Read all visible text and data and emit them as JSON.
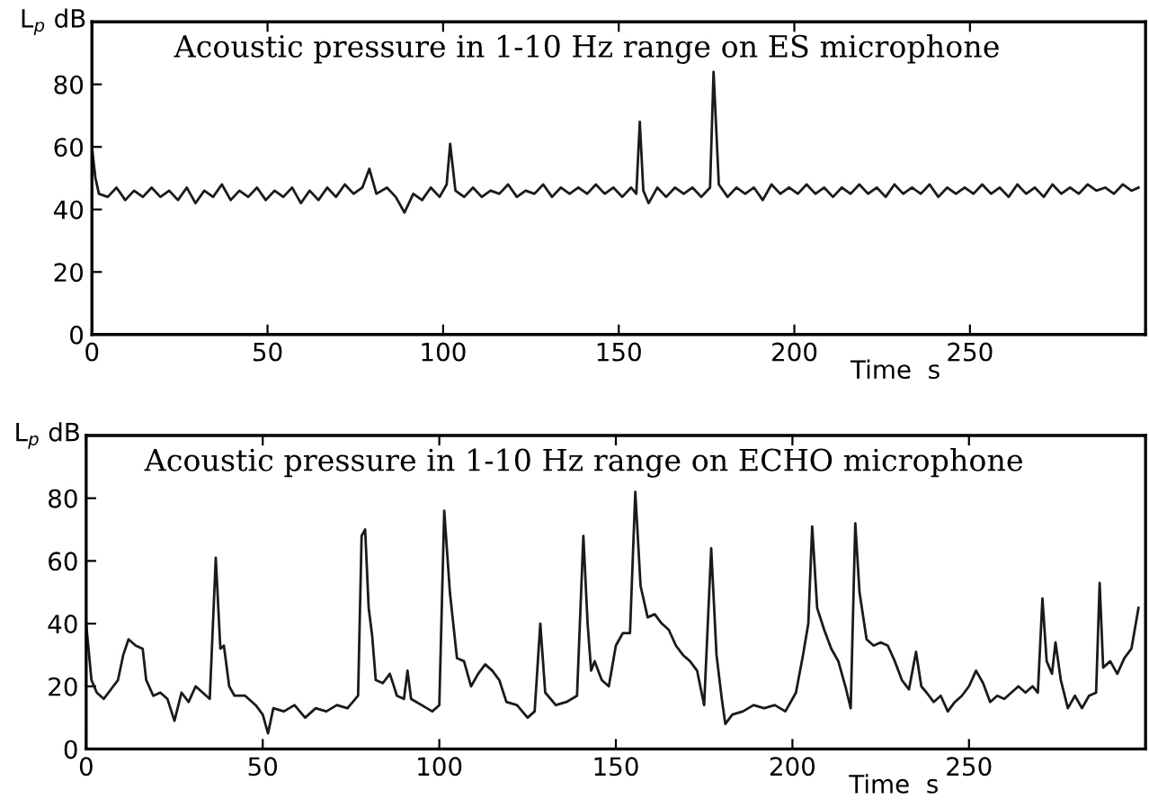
{
  "chart_data": [
    {
      "type": "line",
      "title": "Acoustic pressure in 1-10 Hz range on ES microphone",
      "xlabel": "Time  s",
      "ylabel": "L$_{p}$ dB",
      "xlim": [
        0,
        300
      ],
      "ylim": [
        0,
        100
      ],
      "xticks": [
        0,
        50,
        100,
        150,
        200,
        250
      ],
      "yticks": [
        0,
        20,
        40,
        60,
        80
      ],
      "grid": false,
      "legend": false,
      "marker": "none",
      "line_style": "solid",
      "series": [
        {
          "color": "#1a1a1a",
          "x": [
            0,
            1,
            2,
            4.5,
            7,
            9.5,
            12,
            14.5,
            17,
            19.5,
            22,
            24.5,
            27,
            29.5,
            32,
            34.5,
            37,
            39.5,
            42,
            44.5,
            47,
            49.5,
            52,
            54.5,
            57,
            59.5,
            62,
            64.5,
            67,
            69.5,
            72,
            74.5,
            77,
            79,
            81,
            84,
            86.5,
            89,
            91.5,
            94,
            96.5,
            99,
            101,
            102,
            103.5,
            106,
            108.5,
            111,
            113.5,
            116,
            118.5,
            121,
            123.5,
            126,
            128.5,
            131,
            133.5,
            136,
            138.5,
            141,
            143.5,
            146,
            148.5,
            151,
            153.5,
            155,
            156,
            157,
            158.5,
            161,
            163.5,
            166,
            168.5,
            171,
            173.5,
            176,
            177,
            178.5,
            181,
            183.5,
            186,
            188.5,
            191,
            193.5,
            196,
            198.5,
            201,
            203.5,
            206,
            208.5,
            211,
            213.5,
            216,
            218.5,
            221,
            223.5,
            226,
            228.5,
            231,
            233.5,
            236,
            238.5,
            241,
            243.5,
            246,
            248.5,
            251,
            253.5,
            256,
            258.5,
            261,
            263.5,
            266,
            268.5,
            271,
            273.5,
            276,
            278.5,
            281,
            283.5,
            286,
            288.5,
            291,
            293.5,
            296,
            298
          ],
          "values": [
            60,
            50,
            45,
            44,
            47,
            43,
            46,
            44,
            47,
            44,
            46,
            43,
            47,
            42,
            46,
            44,
            48,
            43,
            46,
            44,
            47,
            43,
            46,
            44,
            47,
            42,
            46,
            43,
            47,
            44,
            48,
            45,
            47,
            53,
            45,
            47,
            44,
            39,
            45,
            43,
            47,
            44,
            48,
            61,
            46,
            44,
            47,
            44,
            46,
            45,
            48,
            44,
            46,
            45,
            48,
            44,
            47,
            45,
            47,
            45,
            48,
            45,
            47,
            44,
            47,
            45,
            68,
            46,
            42,
            47,
            44,
            47,
            45,
            47,
            44,
            47,
            84,
            48,
            44,
            47,
            45,
            47,
            43,
            48,
            45,
            47,
            45,
            48,
            45,
            47,
            44,
            47,
            45,
            48,
            45,
            47,
            44,
            48,
            45,
            47,
            45,
            48,
            44,
            47,
            45,
            47,
            45,
            48,
            45,
            47,
            44,
            48,
            45,
            47,
            44,
            48,
            45,
            47,
            45,
            48,
            46,
            47,
            45,
            48,
            46,
            47
          ]
        }
      ]
    },
    {
      "type": "line",
      "title": "Acoustic pressure in 1-10 Hz range on ECHO microphone",
      "xlabel": "Time  s",
      "ylabel": "L$_{p}$ dB",
      "xlim": [
        0,
        300
      ],
      "ylim": [
        0,
        100
      ],
      "xticks": [
        0,
        50,
        100,
        150,
        200,
        250
      ],
      "yticks": [
        0,
        20,
        40,
        60,
        80
      ],
      "grid": false,
      "legend": false,
      "marker": "none",
      "line_style": "solid",
      "series": [
        {
          "color": "#1a1a1a",
          "x": [
            0,
            1.5,
            3,
            5,
            7,
            9,
            10.5,
            12,
            14,
            16,
            17,
            19,
            21,
            23,
            25,
            27,
            29,
            31,
            33,
            35,
            36.7,
            38,
            39,
            40.5,
            42,
            45,
            48,
            50,
            51.5,
            53,
            56,
            59,
            62,
            65,
            68,
            71,
            74,
            77,
            78,
            79,
            80,
            81,
            82,
            84,
            86,
            88,
            90,
            91,
            92,
            95,
            98,
            100,
            101.4,
            103,
            105,
            107,
            109,
            111,
            113,
            115,
            117,
            119,
            122,
            125,
            127,
            128.6,
            130,
            133,
            136,
            139,
            140.8,
            142,
            143,
            144,
            146,
            148,
            150,
            152,
            154,
            155.5,
            157,
            159,
            161,
            163,
            165,
            167,
            169,
            171,
            173,
            175,
            177,
            178.5,
            180,
            181,
            183,
            186,
            189,
            192,
            195,
            198,
            201,
            203,
            204.5,
            205.6,
            207,
            209,
            211,
            213,
            215,
            216.5,
            217.8,
            219,
            221,
            223,
            225,
            227,
            229,
            231,
            233,
            235,
            236.5,
            238,
            240,
            242,
            244,
            246,
            248,
            250,
            252,
            254,
            256,
            258,
            260,
            262,
            264,
            266,
            268,
            269.5,
            270.8,
            272,
            273.5,
            274.5,
            276,
            278,
            280,
            282,
            284,
            286,
            287,
            288,
            290,
            292,
            294,
            296,
            298
          ],
          "values": [
            40,
            22,
            18,
            16,
            19,
            22,
            30,
            35,
            33,
            32,
            22,
            17,
            18,
            16,
            9,
            18,
            15,
            20,
            18,
            16,
            61,
            32,
            33,
            20,
            17,
            17,
            14,
            11,
            5,
            13,
            12,
            14,
            10,
            13,
            12,
            14,
            13,
            17,
            68,
            70,
            45,
            36,
            22,
            21,
            24,
            17,
            16,
            25,
            16,
            14,
            12,
            14,
            76,
            50,
            29,
            28,
            20,
            24,
            27,
            25,
            22,
            15,
            14,
            10,
            12,
            40,
            18,
            14,
            15,
            17,
            68,
            40,
            25,
            28,
            22,
            20,
            33,
            37,
            37,
            82,
            52,
            42,
            43,
            40,
            38,
            33,
            30,
            28,
            25,
            14,
            64,
            30,
            16,
            8,
            11,
            12,
            14,
            13,
            14,
            12,
            18,
            30,
            40,
            71,
            45,
            38,
            32,
            28,
            20,
            13,
            72,
            50,
            35,
            33,
            34,
            33,
            28,
            22,
            19,
            31,
            20,
            18,
            15,
            17,
            12,
            15,
            17,
            20,
            25,
            21,
            15,
            17,
            16,
            18,
            20,
            18,
            20,
            18,
            48,
            28,
            24,
            34,
            22,
            13,
            17,
            13,
            17,
            18,
            53,
            26,
            28,
            24,
            29,
            32,
            45
          ]
        }
      ]
    }
  ]
}
